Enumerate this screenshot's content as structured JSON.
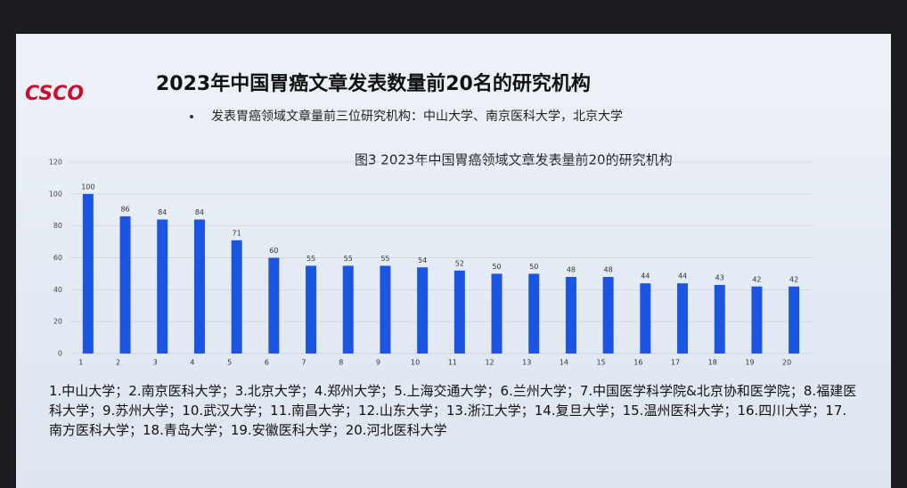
{
  "slide": {
    "logo": "CSCO",
    "title": "2023年中国胃癌文章发表数量前20名的研究机构",
    "bullet": "发表胃癌领域文章量前三位研究机构：中山大学、南京医科大学，北京大学",
    "footnote": "1.中山大学；2.南京医科大学；3.北京大学；4.郑州大学；5.上海交通大学；6.兰州大学；7.中国医学科学院&北京协和医学院；8.福建医科大学；9.苏州大学；10.武汉大学；11.南昌大学；12.山东大学；13.浙江大学；14.复旦大学；15.温州医科大学；16.四川大学；17.南方医科大学；18.青岛大学；19.安徽医科大学；20.河北医科大学"
  },
  "chart_data": {
    "type": "bar",
    "title": "图3  2023年中国胃癌领域文章发表量前20的研究机构",
    "categories": [
      "1",
      "2",
      "3",
      "4",
      "5",
      "6",
      "7",
      "8",
      "9",
      "10",
      "11",
      "12",
      "13",
      "14",
      "15",
      "16",
      "17",
      "18",
      "19",
      "20"
    ],
    "values": [
      100,
      86,
      84,
      84,
      71,
      60,
      55,
      55,
      55,
      54,
      52,
      50,
      50,
      48,
      48,
      44,
      44,
      43,
      42,
      42
    ],
    "color": "#1d55e3",
    "ylim": [
      0,
      120
    ],
    "yticks": [
      0,
      20,
      40,
      60,
      80,
      100,
      120
    ],
    "grid": true
  }
}
